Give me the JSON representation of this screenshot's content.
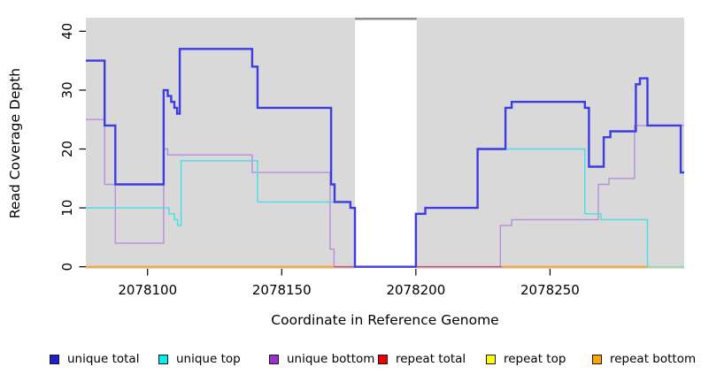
{
  "chart_data": {
    "type": "line",
    "subtype": "step-coverage",
    "title": "",
    "xlabel": "Coordinate in Reference Genome",
    "ylabel": "Read Coverage Depth",
    "xlim": [
      2078077,
      2078300
    ],
    "ylim": [
      0,
      42.3
    ],
    "xticks": [
      2078100,
      2078150,
      2078200,
      2078250
    ],
    "xtick_labels": [
      "2078100",
      "2078150",
      "2078200",
      "2078250"
    ],
    "yticks": [
      0,
      10,
      20,
      30,
      40
    ],
    "ytick_labels": [
      "0",
      "10",
      "20",
      "30",
      "40"
    ],
    "plot_bg": "#d9d9d9",
    "grid": "off",
    "legend_position": "bottom",
    "gap_region": {
      "x0": 2078177.3,
      "x1": 2078200.3,
      "fill": "#ffffff",
      "cap_color": "#8c8c8c"
    },
    "series": [
      {
        "name": "unique bottom",
        "line_color": "#b78fd9",
        "line_width": 1.4,
        "points": [
          [
            2078077,
            25
          ],
          [
            2078084,
            14
          ],
          [
            2078088,
            4
          ],
          [
            2078106,
            20
          ],
          [
            2078107.5,
            19
          ],
          [
            2078139,
            16
          ],
          [
            2078168,
            3
          ],
          [
            2078169.5,
            0
          ],
          [
            2078231.5,
            7
          ],
          [
            2078235.7,
            8
          ],
          [
            2078268,
            14
          ],
          [
            2078272,
            15
          ],
          [
            2078281.5,
            24
          ]
        ]
      },
      {
        "name": "unique top",
        "line_color": "#45dde8",
        "line_width": 1.4,
        "points": [
          [
            2078077,
            10
          ],
          [
            2078108,
            9
          ],
          [
            2078110,
            8
          ],
          [
            2078111.2,
            7
          ],
          [
            2078112.5,
            18
          ],
          [
            2078141,
            11
          ],
          [
            2078175.6,
            10
          ],
          [
            2078177.3,
            0
          ],
          [
            2078200,
            9
          ],
          [
            2078203.5,
            10
          ],
          [
            2078223,
            20
          ],
          [
            2078263,
            9
          ],
          [
            2078269,
            8
          ],
          [
            2078286.3,
            0
          ]
        ]
      },
      {
        "name": "unique total",
        "line_color": "#3c3ce2",
        "line_width": 2.4,
        "points": [
          [
            2078077,
            35
          ],
          [
            2078084,
            24
          ],
          [
            2078088,
            14
          ],
          [
            2078106,
            30
          ],
          [
            2078107.5,
            29
          ],
          [
            2078108.8,
            28
          ],
          [
            2078110,
            27
          ],
          [
            2078111,
            26
          ],
          [
            2078112,
            37
          ],
          [
            2078139,
            34
          ],
          [
            2078141,
            27
          ],
          [
            2078168.4,
            14
          ],
          [
            2078169.7,
            11
          ],
          [
            2078175.6,
            10
          ],
          [
            2078177.3,
            0
          ],
          [
            2078200,
            9
          ],
          [
            2078203.5,
            10
          ],
          [
            2078223,
            20
          ],
          [
            2078233.4,
            27
          ],
          [
            2078235.7,
            28
          ],
          [
            2078263,
            27
          ],
          [
            2078264.5,
            17
          ],
          [
            2078270,
            22
          ],
          [
            2078272.5,
            23
          ],
          [
            2078282,
            31
          ],
          [
            2078283.5,
            32
          ],
          [
            2078286.3,
            24
          ],
          [
            2078298.7,
            16
          ]
        ]
      }
    ],
    "baseline_segments": [
      {
        "name": "repeat-bottom-left",
        "x0": 2078077,
        "x1": 2078169.5,
        "value": 0,
        "color": "#ffa126",
        "width": 2
      },
      {
        "name": "repeat-total-mid",
        "x0": 2078169.5,
        "x1": 2078232,
        "value": 0,
        "color": "#c8506e",
        "width": 1.6
      },
      {
        "name": "repeat-bottom-right",
        "x0": 2078232,
        "x1": 2078286.3,
        "value": 0,
        "color": "#ffa126",
        "width": 2
      },
      {
        "name": "repeat-top-end",
        "x0": 2078286.3,
        "x1": 2078300,
        "value": 0,
        "color": "#8fdc9b",
        "width": 1.6
      }
    ],
    "legend": [
      {
        "label": "unique total",
        "color": "#2020d0"
      },
      {
        "label": "unique top",
        "color": "#00eeee"
      },
      {
        "label": "unique bottom",
        "color": "#9932cc"
      },
      {
        "label": "repeat total",
        "color": "#ee0000"
      },
      {
        "label": "repeat top",
        "color": "#ffff00"
      },
      {
        "label": "repeat bottom",
        "color": "#ffa500"
      }
    ]
  }
}
